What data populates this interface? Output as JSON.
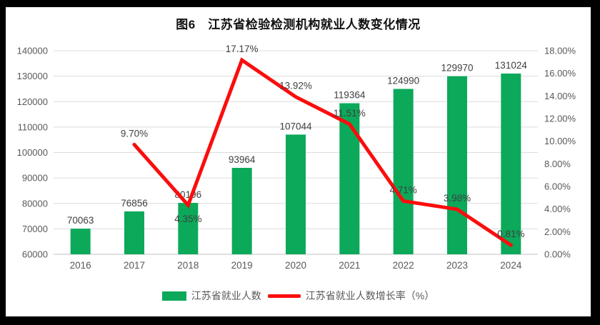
{
  "title": "图6　江苏省检验检测机构就业人数变化情况",
  "legend": [
    {
      "label": "江苏省就业人数",
      "marker": "bar-swatch",
      "color": "#0CA95A"
    },
    {
      "label": "江苏省就业人数增长率（%）",
      "marker": "line-swatch",
      "color": "#FB0D0D"
    }
  ],
  "chart_data": {
    "type": "bar",
    "title": "图6　江苏省检验检测机构就业人数变化情况",
    "categories": [
      "2016",
      "2017",
      "2018",
      "2019",
      "2020",
      "2021",
      "2022",
      "2023",
      "2024"
    ],
    "series": [
      {
        "name": "江苏省就业人数",
        "kind": "bar",
        "axis": "left",
        "values": [
          70063,
          76856,
          80196,
          93964,
          107044,
          119364,
          124990,
          129970,
          131024
        ],
        "labels": [
          "70063",
          "76856",
          "80196",
          "93964",
          "107044",
          "119364",
          "124990",
          "129970",
          "131024"
        ]
      },
      {
        "name": "江苏省就业人数增长率（%）",
        "kind": "line",
        "axis": "right",
        "values": [
          null,
          9.7,
          4.35,
          17.17,
          13.92,
          11.51,
          4.71,
          3.98,
          0.81
        ],
        "labels": [
          "",
          "9.70%",
          "4.35%",
          "17.17%",
          "13.92%",
          "11.51%",
          "4.71%",
          "3.98%",
          "0.81%"
        ],
        "label_side": [
          "",
          "above",
          "below",
          "above",
          "above",
          "above",
          "above",
          "above",
          "above"
        ]
      }
    ],
    "left_axis": {
      "min": 60000,
      "max": 140000,
      "step": 10000,
      "tick_labels": [
        "140000",
        "130000",
        "120000",
        "110000",
        "100000",
        "90000",
        "80000",
        "70000",
        "60000"
      ]
    },
    "right_axis": {
      "min": 0,
      "max": 18,
      "step": 2,
      "tick_labels": [
        "18.00%",
        "16.00%",
        "14.00%",
        "12.00%",
        "10.00%",
        "8.00%",
        "6.00%",
        "4.00%",
        "2.00%",
        "0.00%"
      ]
    },
    "grid": true,
    "legend_position": "bottom",
    "colors": {
      "bar": "#0CA95A",
      "line": "#FB0D0D",
      "grid": "#DCDCDC",
      "axis_line": "#C0C0C0",
      "axis_text": "#595959",
      "data_label": "#3F3F3F"
    }
  }
}
